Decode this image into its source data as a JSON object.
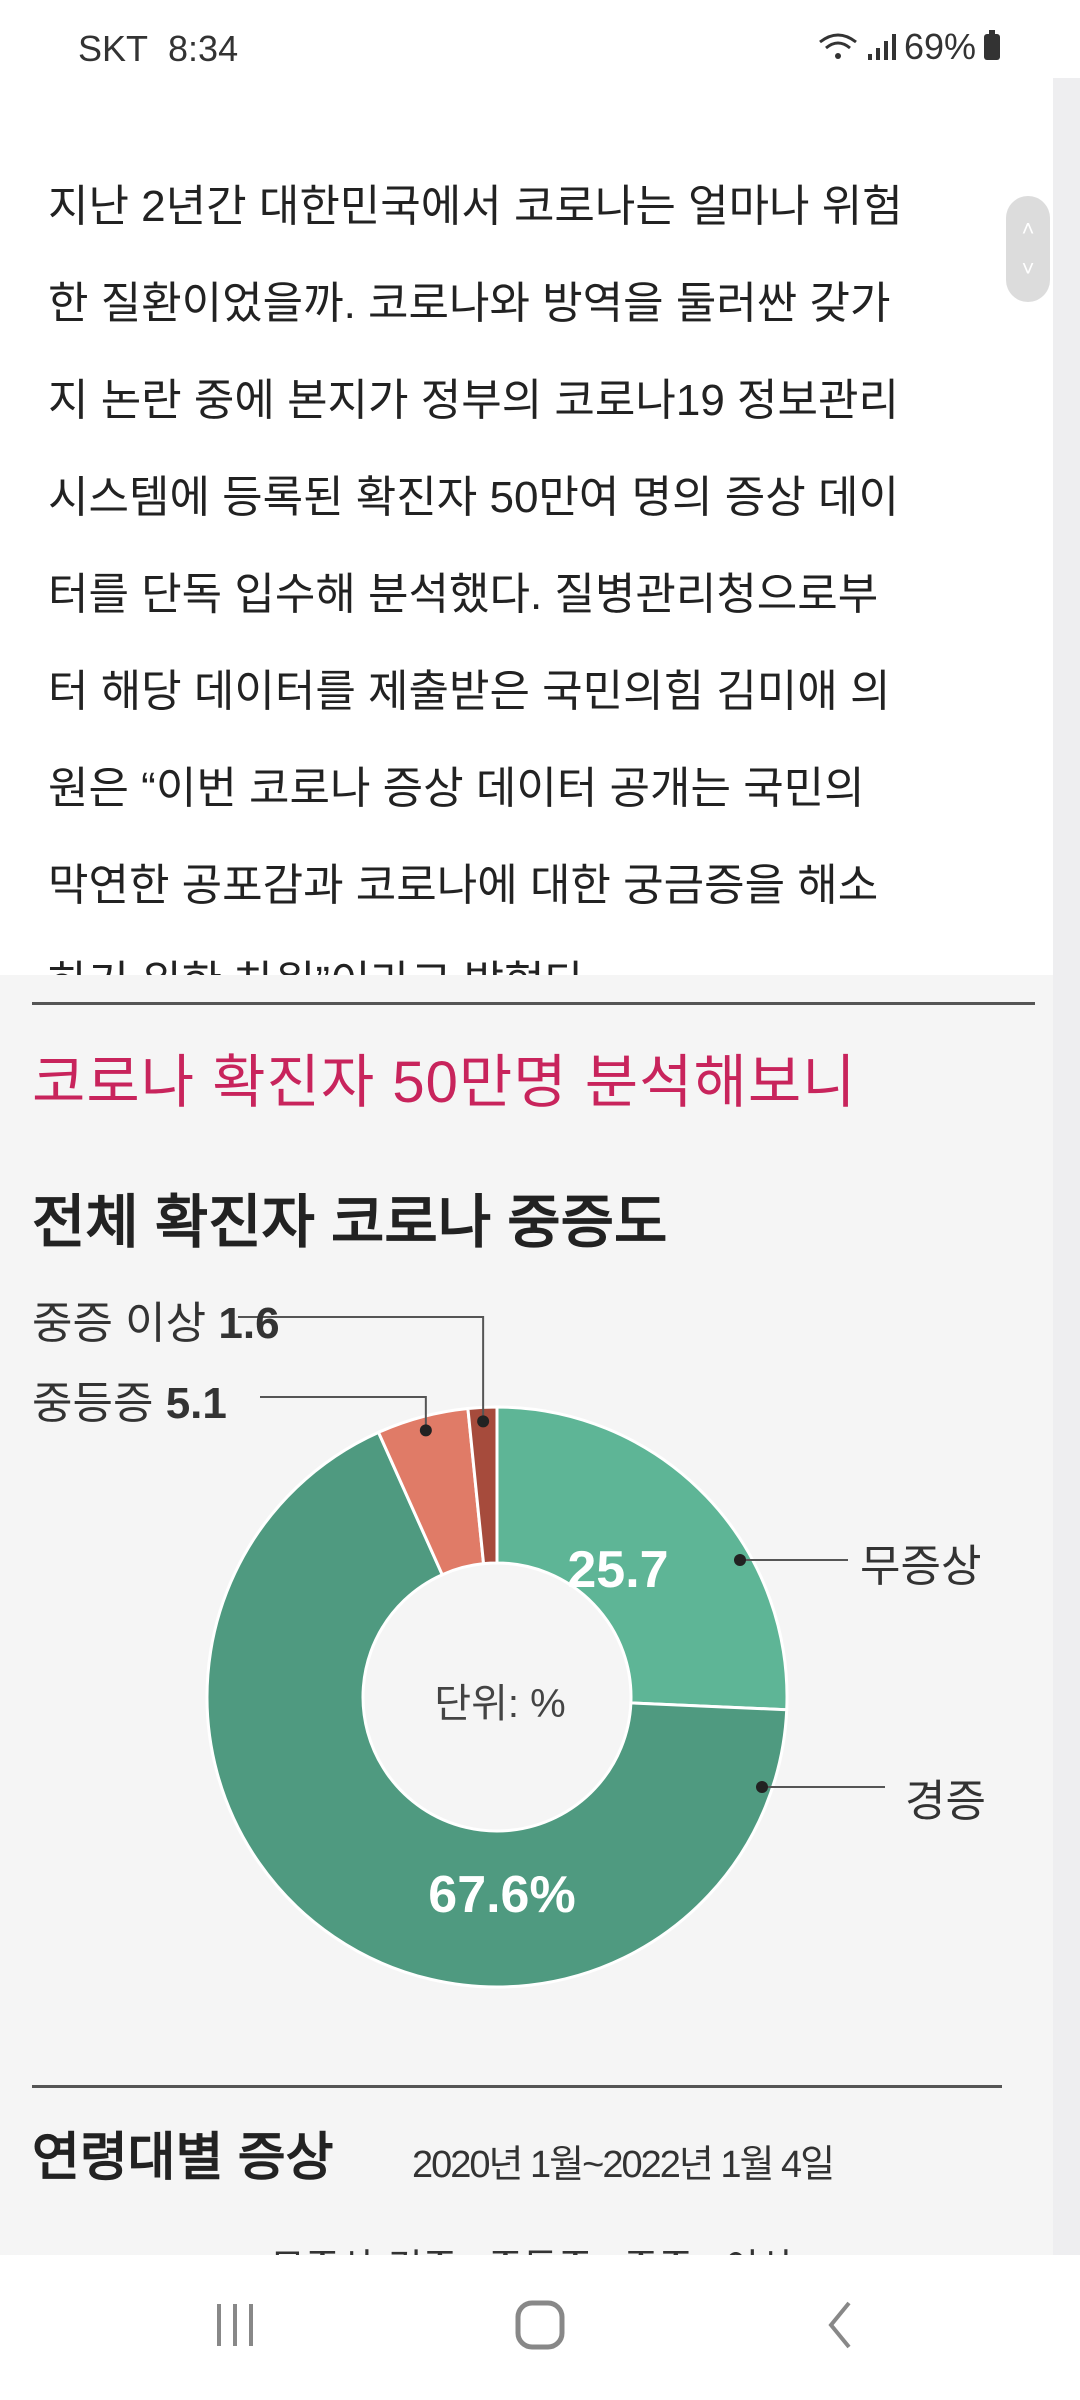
{
  "status_bar": {
    "carrier": "SKT",
    "time": "8:34",
    "battery": "69%",
    "icons": [
      "wifi-icon",
      "signal-icon",
      "battery-icon"
    ]
  },
  "article": {
    "paragraph": "지난 2년간 대한민국에서 코로나는 얼마나 위험\n한 질환이었을까. 코로나와 방역을 둘러싼 갖가\n지 논란 중에 본지가 정부의 코로나19 정보관리\n시스템에 등록된 확진자 50만여 명의 증상 데이\n터를 단독 입수해 분석했다. 질병관리청으로부\n터 해당 데이터를 제출받은 국민의힘 김미애 의\n원은 “이번 코로나 증상 데이터 공개는 국민의\n막연한 공포감과 코로나에 대한 궁금증을 해소\n하기 위한 차원”이라고 밝혔다."
  },
  "scroll_handle": {
    "up": "˄",
    "down": "˅"
  },
  "infographic": {
    "title": "코로나 확진자 50만명 분석해보니",
    "title_color": "#c8245c",
    "section2_title": "연령대별 증상",
    "section2_date": "2020년 1월~2022년 1월 4일",
    "section2_legend_cut": "무증상·경증 중등증 중증 이상"
  },
  "chart_data": {
    "type": "pie",
    "donut": true,
    "title": "전체 확진자 코로나 중증도",
    "unit_label": "단위: %",
    "categories": [
      "무증상",
      "경증",
      "중등증",
      "중증 이상"
    ],
    "values": [
      25.7,
      67.6,
      5.1,
      1.6
    ],
    "value_labels": [
      "25.7",
      "67.6%",
      "5.1",
      "1.6"
    ],
    "colors": [
      "#5eb596",
      "#4f9a80",
      "#e07b67",
      "#a64b3c"
    ],
    "start": "top",
    "direction": "clockwise"
  },
  "navbar": {
    "items": [
      "recent-apps",
      "home",
      "back"
    ]
  }
}
